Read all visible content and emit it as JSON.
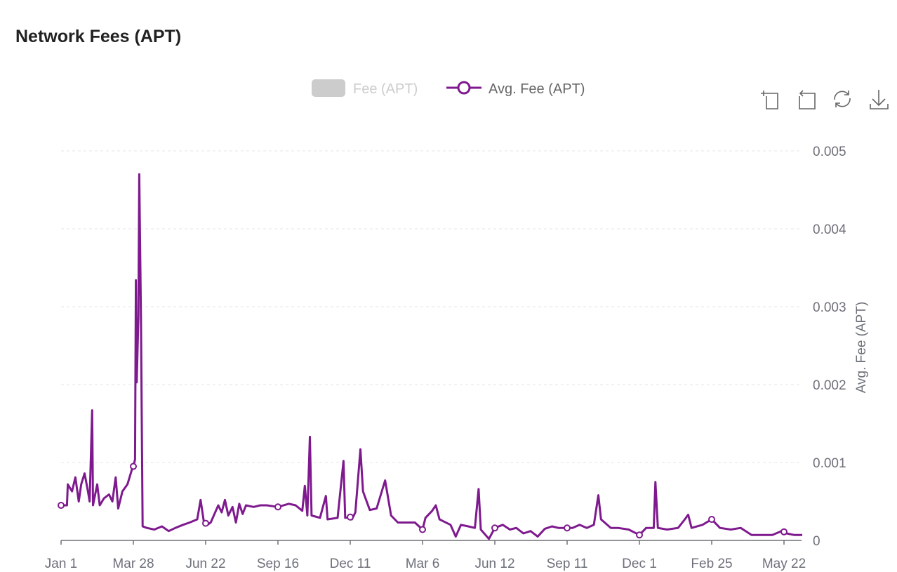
{
  "title": "Network Fees (APT)",
  "toolbar": [
    {
      "icon": "zoom-select-icon"
    },
    {
      "icon": "zoom-reset-icon"
    },
    {
      "icon": "restore-icon"
    },
    {
      "icon": "download-icon"
    }
  ],
  "colors": {
    "series": "#7e1a8e",
    "legend_disabled": "#cccccc",
    "grid": "#e6e6e6",
    "axis": "#6e7079",
    "text": "#6e7079"
  },
  "chart_data": {
    "type": "line",
    "title": "Network Fees (APT)",
    "legend": {
      "placement": "top-center",
      "items": [
        {
          "name": "Fee (APT)",
          "enabled": false
        },
        {
          "name": "Avg. Fee (APT)",
          "enabled": true
        }
      ]
    },
    "ylabel": "Avg. Fee (APT)",
    "y_axis_side": "right",
    "ylim": [
      0,
      0.005
    ],
    "y_ticks": [
      "0",
      "0.001",
      "0.002",
      "0.003",
      "0.004",
      "0.005"
    ],
    "grid": true,
    "x_ticks": [
      {
        "label": "Jan 1",
        "date": "2022-01-01"
      },
      {
        "label": "Mar 28",
        "date": "2022-03-28"
      },
      {
        "label": "Jun 22",
        "date": "2022-06-22"
      },
      {
        "label": "Sep 16",
        "date": "2022-09-16"
      },
      {
        "label": "Dec 11",
        "date": "2022-12-11"
      },
      {
        "label": "Mar 6",
        "date": "2023-03-06"
      },
      {
        "label": "Jun 12",
        "date": "2023-06-12"
      },
      {
        "label": "Sep 11",
        "date": "2023-09-11"
      },
      {
        "label": "Dec 1",
        "date": "2023-12-01"
      },
      {
        "label": "Feb 25",
        "date": "2024-02-25"
      },
      {
        "label": "May 22",
        "date": "2024-05-22"
      }
    ],
    "series": [
      {
        "name": "Avg. Fee (APT)",
        "points": [
          [
            "2022-01-01",
            0.00045
          ],
          [
            "2022-01-08",
            0.00045
          ],
          [
            "2022-01-09",
            0.00072
          ],
          [
            "2022-01-14",
            0.00063
          ],
          [
            "2022-01-18",
            0.00081
          ],
          [
            "2022-01-22",
            0.0005
          ],
          [
            "2022-01-25",
            0.00072
          ],
          [
            "2022-01-29",
            0.00086
          ],
          [
            "2022-02-02",
            0.00063
          ],
          [
            "2022-02-04",
            0.0005
          ],
          [
            "2022-02-07",
            0.00167
          ],
          [
            "2022-02-08",
            0.00045
          ],
          [
            "2022-02-13",
            0.00072
          ],
          [
            "2022-02-16",
            0.00045
          ],
          [
            "2022-02-21",
            0.00054
          ],
          [
            "2022-02-27",
            0.00059
          ],
          [
            "2022-03-03",
            0.0005
          ],
          [
            "2022-03-07",
            0.00081
          ],
          [
            "2022-03-10",
            0.00041
          ],
          [
            "2022-03-15",
            0.00063
          ],
          [
            "2022-03-21",
            0.00072
          ],
          [
            "2022-03-26",
            0.0009
          ],
          [
            "2022-03-28",
            0.00095
          ],
          [
            "2022-03-30",
            0.00104
          ],
          [
            "2022-03-31",
            0.00334
          ],
          [
            "2022-04-01",
            0.00203
          ],
          [
            "2022-04-03",
            0.00288
          ],
          [
            "2022-04-04",
            0.0047
          ],
          [
            "2022-04-06",
            0.00288
          ],
          [
            "2022-04-08",
            0.00018
          ],
          [
            "2022-04-13",
            0.00016
          ],
          [
            "2022-04-22",
            0.00014
          ],
          [
            "2022-05-01",
            0.00018
          ],
          [
            "2022-05-09",
            0.00012
          ],
          [
            "2022-05-17",
            0.00016
          ],
          [
            "2022-05-26",
            0.0002
          ],
          [
            "2022-06-03",
            0.00023
          ],
          [
            "2022-06-12",
            0.00027
          ],
          [
            "2022-06-16",
            0.00052
          ],
          [
            "2022-06-20",
            0.00023
          ],
          [
            "2022-06-22",
            0.00022
          ],
          [
            "2022-06-24",
            0.0002
          ],
          [
            "2022-06-28",
            0.00023
          ],
          [
            "2022-07-07",
            0.00045
          ],
          [
            "2022-07-11",
            0.00036
          ],
          [
            "2022-07-15",
            0.00052
          ],
          [
            "2022-07-19",
            0.00032
          ],
          [
            "2022-07-24",
            0.00043
          ],
          [
            "2022-07-28",
            0.00023
          ],
          [
            "2022-08-01",
            0.00047
          ],
          [
            "2022-08-05",
            0.00034
          ],
          [
            "2022-08-09",
            0.00045
          ],
          [
            "2022-08-18",
            0.00043
          ],
          [
            "2022-08-26",
            0.00045
          ],
          [
            "2022-09-03",
            0.00045
          ],
          [
            "2022-09-16",
            0.00043
          ],
          [
            "2022-09-29",
            0.00047
          ],
          [
            "2022-10-07",
            0.00045
          ],
          [
            "2022-10-15",
            0.00038
          ],
          [
            "2022-10-18",
            0.0007
          ],
          [
            "2022-10-21",
            0.00032
          ],
          [
            "2022-10-24",
            0.00133
          ],
          [
            "2022-10-26",
            0.00032
          ],
          [
            "2022-11-05",
            0.00029
          ],
          [
            "2022-11-12",
            0.00057
          ],
          [
            "2022-11-14",
            0.00027
          ],
          [
            "2022-11-26",
            0.00029
          ],
          [
            "2022-12-03",
            0.00102
          ],
          [
            "2022-12-05",
            0.00029
          ],
          [
            "2022-12-11",
            0.0003
          ],
          [
            "2022-12-13",
            0.00027
          ],
          [
            "2022-12-17",
            0.00036
          ],
          [
            "2022-12-23",
            0.00117
          ],
          [
            "2022-12-26",
            0.00063
          ],
          [
            "2022-12-29",
            0.00054
          ],
          [
            "2023-01-03",
            0.00039
          ],
          [
            "2023-01-11",
            0.00041
          ],
          [
            "2023-01-21",
            0.00077
          ],
          [
            "2023-01-28",
            0.00032
          ],
          [
            "2023-02-05",
            0.00023
          ],
          [
            "2023-02-13",
            0.00023
          ],
          [
            "2023-02-25",
            0.00023
          ],
          [
            "2023-03-06",
            0.00014
          ],
          [
            "2023-03-10",
            0.00029
          ],
          [
            "2023-03-19",
            0.00038
          ],
          [
            "2023-03-24",
            0.00045
          ],
          [
            "2023-03-29",
            0.00027
          ],
          [
            "2023-04-13",
            0.0002
          ],
          [
            "2023-04-20",
            5e-05
          ],
          [
            "2023-04-27",
            0.0002
          ],
          [
            "2023-05-07",
            0.00018
          ],
          [
            "2023-05-16",
            0.00016
          ],
          [
            "2023-05-21",
            0.00066
          ],
          [
            "2023-05-24",
            0.00014
          ],
          [
            "2023-06-04",
            2e-05
          ],
          [
            "2023-06-12",
            0.00016
          ],
          [
            "2023-06-22",
            0.0002
          ],
          [
            "2023-07-01",
            0.00014
          ],
          [
            "2023-07-09",
            0.00016
          ],
          [
            "2023-07-18",
            9e-05
          ],
          [
            "2023-07-27",
            0.00012
          ],
          [
            "2023-08-05",
            5e-05
          ],
          [
            "2023-08-14",
            0.00015
          ],
          [
            "2023-08-23",
            0.00018
          ],
          [
            "2023-08-31",
            0.00016
          ],
          [
            "2023-09-11",
            0.00016
          ],
          [
            "2023-09-17",
            0.00016
          ],
          [
            "2023-09-25",
            0.0002
          ],
          [
            "2023-10-03",
            0.00016
          ],
          [
            "2023-10-11",
            0.0002
          ],
          [
            "2023-10-16",
            0.00058
          ],
          [
            "2023-10-19",
            0.00027
          ],
          [
            "2023-10-30",
            0.00016
          ],
          [
            "2023-11-07",
            0.00016
          ],
          [
            "2023-11-19",
            0.00014
          ],
          [
            "2023-12-01",
            7e-05
          ],
          [
            "2023-12-09",
            0.00016
          ],
          [
            "2023-12-18",
            0.00016
          ],
          [
            "2023-12-20",
            0.00075
          ],
          [
            "2023-12-23",
            0.00016
          ],
          [
            "2024-01-03",
            0.00014
          ],
          [
            "2024-01-16",
            0.00016
          ],
          [
            "2024-01-24",
            0.00027
          ],
          [
            "2024-01-28",
            0.00033
          ],
          [
            "2024-02-01",
            0.00016
          ],
          [
            "2024-02-14",
            0.0002
          ],
          [
            "2024-02-25",
            0.00027
          ],
          [
            "2024-03-06",
            0.00016
          ],
          [
            "2024-03-19",
            0.00014
          ],
          [
            "2024-03-31",
            0.00016
          ],
          [
            "2024-04-13",
            7e-05
          ],
          [
            "2024-04-26",
            7e-05
          ],
          [
            "2024-05-08",
            7e-05
          ],
          [
            "2024-05-19",
            0.00012
          ],
          [
            "2024-05-22",
            0.00011
          ],
          [
            "2024-05-25",
            9e-05
          ],
          [
            "2024-06-03",
            7e-05
          ],
          [
            "2024-06-13",
            7e-05
          ]
        ]
      }
    ]
  }
}
